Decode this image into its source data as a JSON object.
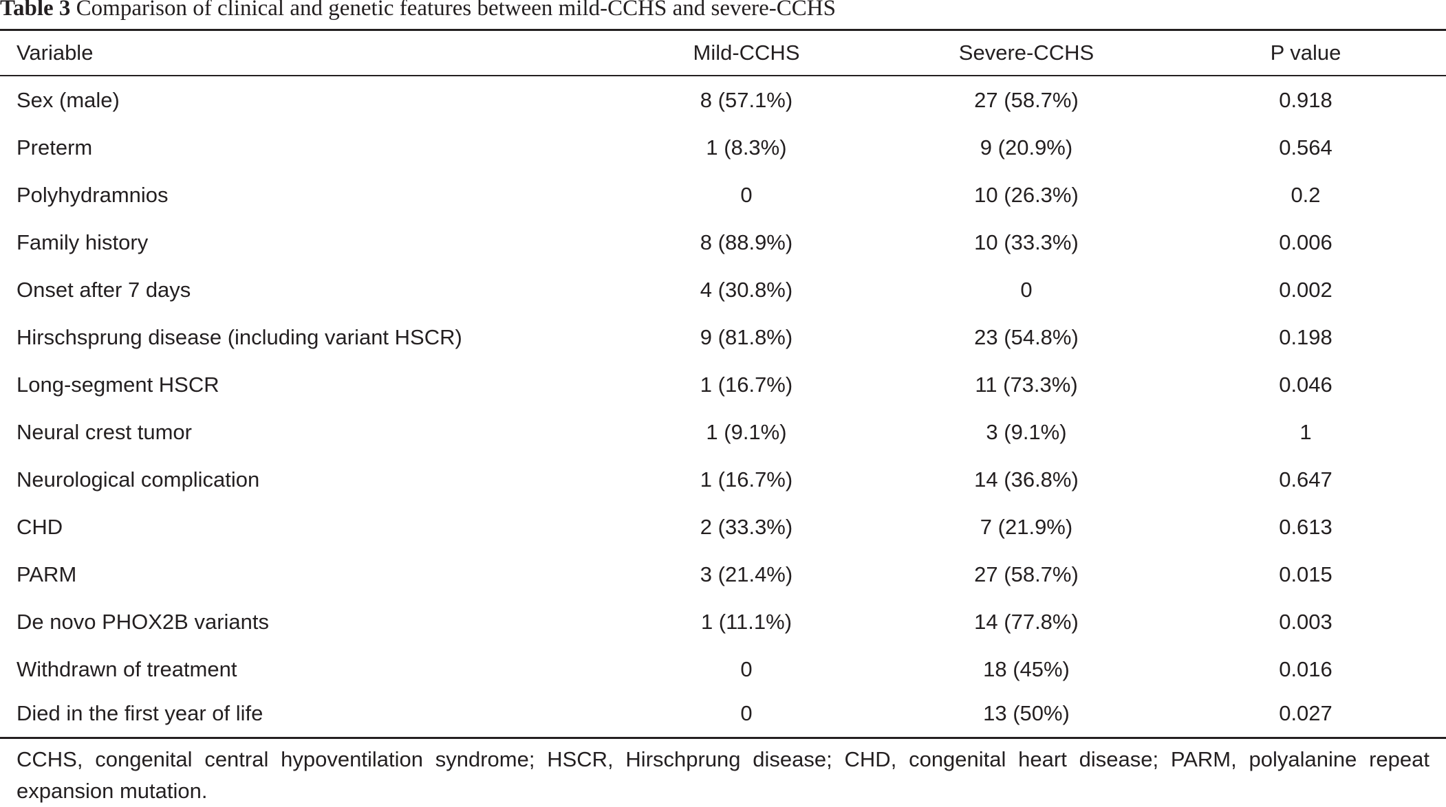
{
  "caption": {
    "label": "Table 3",
    "text": "Comparison of clinical and genetic features between mild-CCHS and severe-CCHS"
  },
  "table": {
    "headers": [
      "Variable",
      "Mild-CCHS",
      "Severe-CCHS",
      "P value"
    ],
    "rows": [
      [
        "Sex (male)",
        "8 (57.1%)",
        "27 (58.7%)",
        "0.918"
      ],
      [
        "Preterm",
        "1 (8.3%)",
        "9 (20.9%)",
        "0.564"
      ],
      [
        "Polyhydramnios",
        "0",
        "10 (26.3%)",
        "0.2"
      ],
      [
        "Family history",
        "8 (88.9%)",
        "10 (33.3%)",
        "0.006"
      ],
      [
        "Onset after 7 days",
        "4 (30.8%)",
        "0",
        "0.002"
      ],
      [
        "Hirschsprung disease (including variant HSCR)",
        "9 (81.8%)",
        "23 (54.8%)",
        "0.198"
      ],
      [
        "Long-segment HSCR",
        "1 (16.7%)",
        "11 (73.3%)",
        "0.046"
      ],
      [
        "Neural crest tumor",
        "1 (9.1%)",
        "3 (9.1%)",
        "1"
      ],
      [
        "Neurological complication",
        "1 (16.7%)",
        "14 (36.8%)",
        "0.647"
      ],
      [
        "CHD",
        "2 (33.3%)",
        "7 (21.9%)",
        "0.613"
      ],
      [
        "PARM",
        "3 (21.4%)",
        "27 (58.7%)",
        "0.015"
      ],
      [
        "De novo PHOX2B variants",
        "1 (11.1%)",
        "14 (77.8%)",
        "0.003"
      ],
      [
        "Withdrawn of treatment",
        "0",
        "18 (45%)",
        "0.016"
      ],
      [
        "Died in the first year of life",
        "0",
        "13 (50%)",
        "0.027"
      ]
    ]
  },
  "footnote": "CCHS, congenital central hypoventilation syndrome; HSCR, Hirschprung disease; CHD, congenital heart disease; PARM, polyalanine repeat expansion mutation."
}
